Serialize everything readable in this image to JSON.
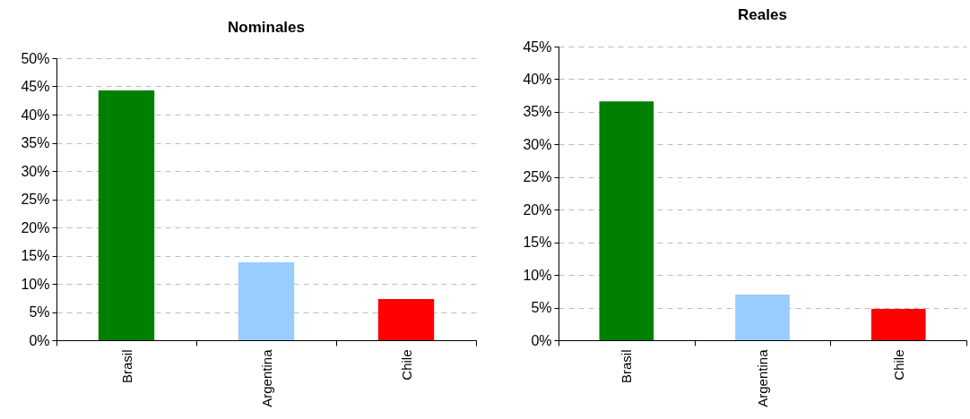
{
  "chart_data": [
    {
      "type": "bar",
      "title": "Nominales",
      "categories": [
        "Brasil",
        "Argentina",
        "Chile"
      ],
      "values": [
        44.3,
        13.8,
        7.3
      ],
      "colors": [
        "#008000",
        "#99ccff",
        "#ff0000"
      ],
      "ylim": [
        0,
        50
      ],
      "yticks": [
        {
          "value": 0,
          "label": "0%"
        },
        {
          "value": 5,
          "label": "5%"
        },
        {
          "value": 10,
          "label": "10%"
        },
        {
          "value": 15,
          "label": "15%"
        },
        {
          "value": 20,
          "label": "20%"
        },
        {
          "value": 25,
          "label": "25%"
        },
        {
          "value": 30,
          "label": "30%"
        },
        {
          "value": 35,
          "label": "35%"
        },
        {
          "value": 40,
          "label": "40%"
        },
        {
          "value": 45,
          "label": "45%"
        },
        {
          "value": 50,
          "label": "50%"
        }
      ],
      "grid": "y"
    },
    {
      "type": "bar",
      "title": "Reales",
      "categories": [
        "Brasil",
        "Argentina",
        "Chile"
      ],
      "values": [
        36.6,
        7.0,
        4.8
      ],
      "colors": [
        "#008000",
        "#99ccff",
        "#ff0000"
      ],
      "ylim": [
        0,
        45
      ],
      "yticks": [
        {
          "value": 0,
          "label": "0%"
        },
        {
          "value": 5,
          "label": "5%"
        },
        {
          "value": 10,
          "label": "10%"
        },
        {
          "value": 15,
          "label": "15%"
        },
        {
          "value": 20,
          "label": "20%"
        },
        {
          "value": 25,
          "label": "25%"
        },
        {
          "value": 30,
          "label": "30%"
        },
        {
          "value": 35,
          "label": "35%"
        },
        {
          "value": 40,
          "label": "40%"
        },
        {
          "value": 45,
          "label": "45%"
        }
      ],
      "grid": "y"
    }
  ]
}
